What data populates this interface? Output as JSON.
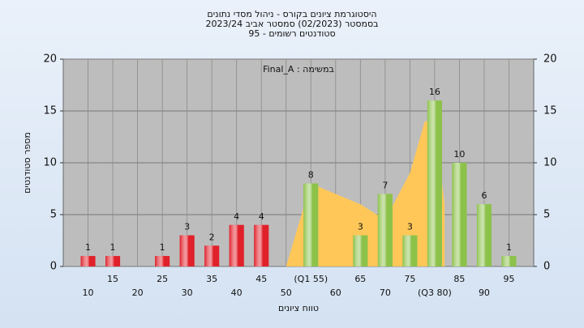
{
  "chart_data": {
    "type": "bar",
    "title_lines": [
      "היסטוגרמת ציונים בקורס - ניהול מסדי נתונים",
      "בסמסטר  (02/2023)  סמסטר אביב 2023/24",
      "95 - סטודנטים רשומים"
    ],
    "annotation": "Final_A : במשימה",
    "x_label": "טווח ציונים",
    "y_label": "מספר סטודנטים",
    "x": [
      10,
      15,
      20,
      25,
      30,
      35,
      40,
      45,
      50,
      55,
      60,
      65,
      70,
      75,
      80,
      85,
      90,
      95
    ],
    "values": [
      1,
      1,
      0,
      1,
      3,
      2,
      4,
      4,
      0,
      8,
      0,
      3,
      7,
      3,
      16,
      10,
      6,
      1
    ],
    "colors": [
      "#e0202a",
      "#e0202a",
      "#e0202a",
      "#e0202a",
      "#e0202a",
      "#e0202a",
      "#e0202a",
      "#e0202a",
      "#e0202a",
      "#8cc24a",
      "#8cc24a",
      "#8cc24a",
      "#8cc24a",
      "#8cc24a",
      "#8cc24a",
      "#8cc24a",
      "#8cc24a",
      "#8cc24a"
    ],
    "area": {
      "x": [
        50,
        55,
        65,
        70,
        75,
        78,
        80,
        82
      ],
      "values": [
        0,
        8,
        6,
        4.5,
        9,
        14,
        14,
        6
      ],
      "color": "#ffc758"
    },
    "xlim": [
      5,
      100
    ],
    "xticks": [
      10,
      15,
      20,
      25,
      30,
      35,
      40,
      45,
      50,
      {
        "value": 55,
        "label": "(Q1 55)"
      },
      60,
      65,
      70,
      75,
      {
        "value": 80,
        "label": "(Q3 80)"
      },
      85,
      90,
      95
    ],
    "ylim": [
      0,
      20
    ],
    "yticks": [
      0,
      5,
      10,
      15,
      20
    ],
    "y2lim": [
      0,
      20
    ],
    "y2ticks": [
      0,
      5,
      10,
      15,
      20
    ],
    "grid": true,
    "plot_color": "#bdbdbd"
  }
}
